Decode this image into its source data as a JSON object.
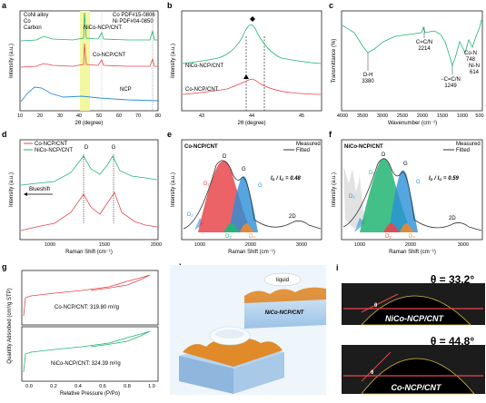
{
  "panels": {
    "a": {
      "letter": "a",
      "legend": [
        "CoNi alloy",
        "Co",
        "Carbon"
      ],
      "pdf": [
        "Co PDF#15-0806",
        "Ni  PDF#04-0850"
      ],
      "series": [
        "NiCo-NCP/CNT",
        "Co-NCP/CNT",
        "NCP"
      ],
      "xlabel": "2θ (degree)",
      "ylabel": "Intensity (a.u.)",
      "xticks": [
        "10",
        "20",
        "30",
        "40",
        "50",
        "60",
        "70",
        "80"
      ]
    },
    "b": {
      "letter": "b",
      "series": [
        "NiCo-NCP/CNT",
        "Co-NCP/CNT"
      ],
      "xlabel": "2θ (degree)",
      "ylabel": "Intensity (a.u.)",
      "xticks": [
        "43",
        "44",
        "45"
      ]
    },
    "c": {
      "letter": "c",
      "xlabel": "Wavenumber (cm⁻¹)",
      "ylabel": "Transmittance (%)",
      "xticks": [
        "4000",
        "3500",
        "3000",
        "2500",
        "2000",
        "1500",
        "1000",
        "500"
      ],
      "peaks": [
        {
          "label": "O-H",
          "value": "3380"
        },
        {
          "label": "C=C/N",
          "value": "2214"
        },
        {
          "label": "−C=C/N",
          "value": "1249"
        },
        {
          "label": "Co-N",
          "value": "748"
        },
        {
          "label": "Ni-N",
          "value": "614"
        }
      ]
    },
    "d": {
      "letter": "d",
      "legend": [
        "Co-NCP/CNT",
        "NiCo-NCP/CNT"
      ],
      "peaks": [
        "D",
        "G"
      ],
      "shift_label": "Blueshift",
      "xlabel": "Raman Shift (cm⁻¹)",
      "ylabel": "Intensity (a.u.)",
      "xticks": [
        "1000",
        "1500",
        "2000"
      ]
    },
    "e": {
      "letter": "e",
      "title": "Co-NCP/CNT",
      "legend": [
        "Measured",
        "Fitted"
      ],
      "ratio_label": "I",
      "ratio_sub1": "D",
      "ratio_mid": " / I",
      "ratio_sub2": "G",
      "ratio_value": " = 0.48",
      "bands": [
        "D",
        "G",
        "D₁",
        "D₂",
        "G",
        "D₃",
        "D₄",
        "2D"
      ],
      "xlabel": "Raman Shift (cm⁻¹)",
      "ylabel": "Intensity (a.u.)",
      "xticks": [
        "1000",
        "2000",
        "3000"
      ]
    },
    "f": {
      "letter": "f",
      "title": "NiCo-NCP/CNT",
      "legend": [
        "Measured",
        "Fitted"
      ],
      "ratio_label": "I",
      "ratio_sub1": "D",
      "ratio_mid": " / I",
      "ratio_sub2": "G",
      "ratio_value": " = 0.59",
      "bands": [
        "D",
        "G",
        "D₁",
        "D₂",
        "G",
        "D₃",
        "D₄",
        "2D"
      ],
      "xlabel": "Raman Shift (cm⁻¹)",
      "ylabel": "Intensity (a.u.)",
      "xticks": [
        "1000",
        "2000",
        "3000"
      ]
    },
    "g": {
      "letter": "g",
      "samples": [
        "Co-NCP/CNT: 319.80 m²/g",
        "NiCo-NCP/CNT: 324.39 m²/g"
      ],
      "xlabel": "Relative Pressure (P/Po)",
      "ylabel": "Quantity Adsorbed (cm³/g STP)",
      "xticks": [
        "0.0",
        "0.2",
        "0.4",
        "0.6",
        "0.8",
        "1.0"
      ]
    },
    "h": {
      "letter": "h",
      "liquid": "liquid",
      "material": "NiCo-NCP/CNT"
    },
    "i": {
      "letter": "i",
      "angle1": "θ = 33.2°",
      "sample1": "NiCo-NCP/CNT",
      "angle2": "θ = 44.8°",
      "sample2": "Co-NCP/CNT",
      "theta": "θ"
    }
  },
  "colors": {
    "green": "#22b573",
    "red": "#e8474c",
    "blue": "#2a8fd8",
    "highlight": "#f3f7a0"
  }
}
